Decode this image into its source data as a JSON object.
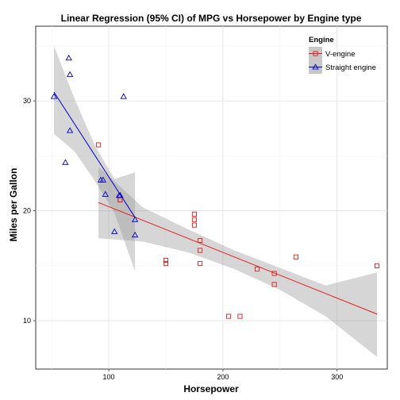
{
  "chart_data": {
    "type": "scatter",
    "title": "Linear Regression (95% CI) of MPG vs Horsepower by Engine type",
    "xlabel": "Horsepower",
    "ylabel": "Miles per Gallon",
    "xlim": [
      36,
      344
    ],
    "ylim": [
      5.6,
      36.8
    ],
    "xticks": [
      100,
      200,
      300
    ],
    "yticks": [
      10,
      20,
      30
    ],
    "grid": true,
    "legend": {
      "title": "Engine",
      "position": "top-right"
    },
    "series": [
      {
        "name": "V-engine",
        "color": "#E41A1C",
        "marker": "square",
        "points": [
          {
            "x": 110,
            "y": 21.0
          },
          {
            "x": 110,
            "y": 21.0
          },
          {
            "x": 175,
            "y": 18.7
          },
          {
            "x": 180,
            "y": 16.4
          },
          {
            "x": 180,
            "y": 17.3
          },
          {
            "x": 180,
            "y": 15.2
          },
          {
            "x": 205,
            "y": 10.4
          },
          {
            "x": 215,
            "y": 10.4
          },
          {
            "x": 230,
            "y": 14.7
          },
          {
            "x": 150,
            "y": 15.5
          },
          {
            "x": 150,
            "y": 15.2
          },
          {
            "x": 245,
            "y": 13.3
          },
          {
            "x": 175,
            "y": 19.2
          },
          {
            "x": 91,
            "y": 26.0
          },
          {
            "x": 264,
            "y": 15.8
          },
          {
            "x": 175,
            "y": 19.7
          },
          {
            "x": 335,
            "y": 15.0
          },
          {
            "x": 245,
            "y": 14.3
          }
        ],
        "fit": {
          "x": [
            91,
            335
          ],
          "y": [
            20.75,
            10.6
          ]
        },
        "ci": [
          {
            "x": 91,
            "lo": 17.5,
            "hi": 24.0
          },
          {
            "x": 130,
            "lo": 17.2,
            "hi": 20.3
          },
          {
            "x": 170,
            "lo": 16.2,
            "hi": 18.3
          },
          {
            "x": 210,
            "lo": 14.7,
            "hi": 16.4
          },
          {
            "x": 250,
            "lo": 12.8,
            "hi": 14.8
          },
          {
            "x": 290,
            "lo": 10.4,
            "hi": 13.2
          },
          {
            "x": 335,
            "lo": 6.7,
            "hi": 14.4
          }
        ]
      },
      {
        "name": "Straight engine",
        "color": "#0000CC",
        "marker": "triangle",
        "points": [
          {
            "x": 110,
            "y": 21.4
          },
          {
            "x": 105,
            "y": 18.1
          },
          {
            "x": 62,
            "y": 24.4
          },
          {
            "x": 95,
            "y": 22.8
          },
          {
            "x": 123,
            "y": 19.2
          },
          {
            "x": 123,
            "y": 17.8
          },
          {
            "x": 66,
            "y": 32.4
          },
          {
            "x": 52,
            "y": 30.4
          },
          {
            "x": 65,
            "y": 33.9
          },
          {
            "x": 97,
            "y": 21.5
          },
          {
            "x": 66,
            "y": 27.3
          },
          {
            "x": 113,
            "y": 30.4
          },
          {
            "x": 109,
            "y": 21.4
          },
          {
            "x": 93,
            "y": 22.8
          }
        ],
        "fit": {
          "x": [
            52,
            123
          ],
          "y": [
            30.8,
            19.4
          ]
        },
        "ci": [
          {
            "x": 52,
            "lo": 27.0,
            "hi": 35.0
          },
          {
            "x": 70,
            "lo": 25.4,
            "hi": 30.2
          },
          {
            "x": 88,
            "lo": 22.7,
            "hi": 25.9
          },
          {
            "x": 105,
            "lo": 19.8,
            "hi": 22.9
          },
          {
            "x": 123,
            "lo": 14.5,
            "hi": 23.5
          }
        ]
      }
    ]
  }
}
